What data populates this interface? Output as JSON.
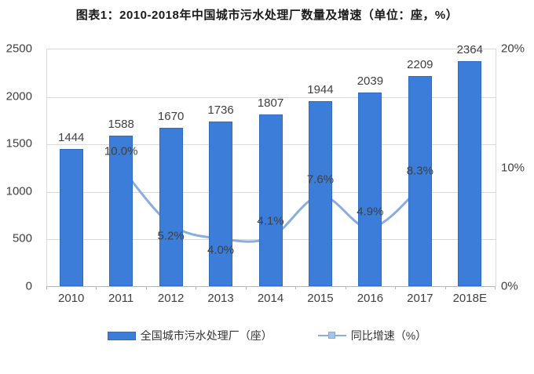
{
  "title": "图表1：2010-2018年中国城市污水处理厂数量及增速（单位：座，%）",
  "chart_data": {
    "type": "bar",
    "title": "图表1：2010-2018年中国城市污水处理厂数量及增速（单位：座，%）",
    "categories": [
      "2010",
      "2011",
      "2012",
      "2013",
      "2014",
      "2015",
      "2016",
      "2017",
      "2018E"
    ],
    "series": [
      {
        "name": "全国城市污水处理厂（座）",
        "type": "bar",
        "axis": "left",
        "color": "#3b7dd8",
        "values": [
          1444,
          1588,
          1670,
          1736,
          1807,
          1944,
          2039,
          2209,
          2364
        ],
        "value_labels": [
          "1444",
          "1588",
          "1670",
          "1736",
          "1807",
          "1944",
          "2039",
          "2209",
          "2364"
        ]
      },
      {
        "name": "同比增速（%）",
        "type": "line",
        "axis": "right",
        "color": "#89aedd",
        "marker_color": "#a3c5e8",
        "points": [
          {
            "category": "2011",
            "value": 10.0,
            "label": "10.0%",
            "label_pos": "above"
          },
          {
            "category": "2012",
            "value": 5.2,
            "label": "5.2%",
            "label_pos": "below"
          },
          {
            "category": "2013",
            "value": 4.0,
            "label": "4.0%",
            "label_pos": "below"
          },
          {
            "category": "2014",
            "value": 4.1,
            "label": "4.1%",
            "label_pos": "above"
          },
          {
            "category": "2015",
            "value": 7.6,
            "label": "7.6%",
            "label_pos": "above"
          },
          {
            "category": "2016",
            "value": 4.9,
            "label": "4.9%",
            "label_pos": "above"
          },
          {
            "category": "2017",
            "value": 8.3,
            "label": "8.3%",
            "label_pos": "above"
          }
        ]
      }
    ],
    "left_axis": {
      "min": 0,
      "max": 2500,
      "ticks": [
        2500,
        2000,
        1500,
        1000,
        500,
        0
      ],
      "tick_labels": [
        "2500",
        "2000",
        "1500",
        "1000",
        "500",
        "0"
      ]
    },
    "right_axis": {
      "min": 0,
      "max": 20,
      "ticks": [
        20,
        10,
        0
      ],
      "tick_labels": [
        "20%",
        "10%",
        "0%"
      ]
    },
    "grid": true,
    "legend_position": "bottom"
  },
  "colors": {
    "bar": "#3b7dd8",
    "line": "#89aedd",
    "marker": "#a3c5e8",
    "grid": "#d9d9d9",
    "axis_text": "#404040"
  }
}
